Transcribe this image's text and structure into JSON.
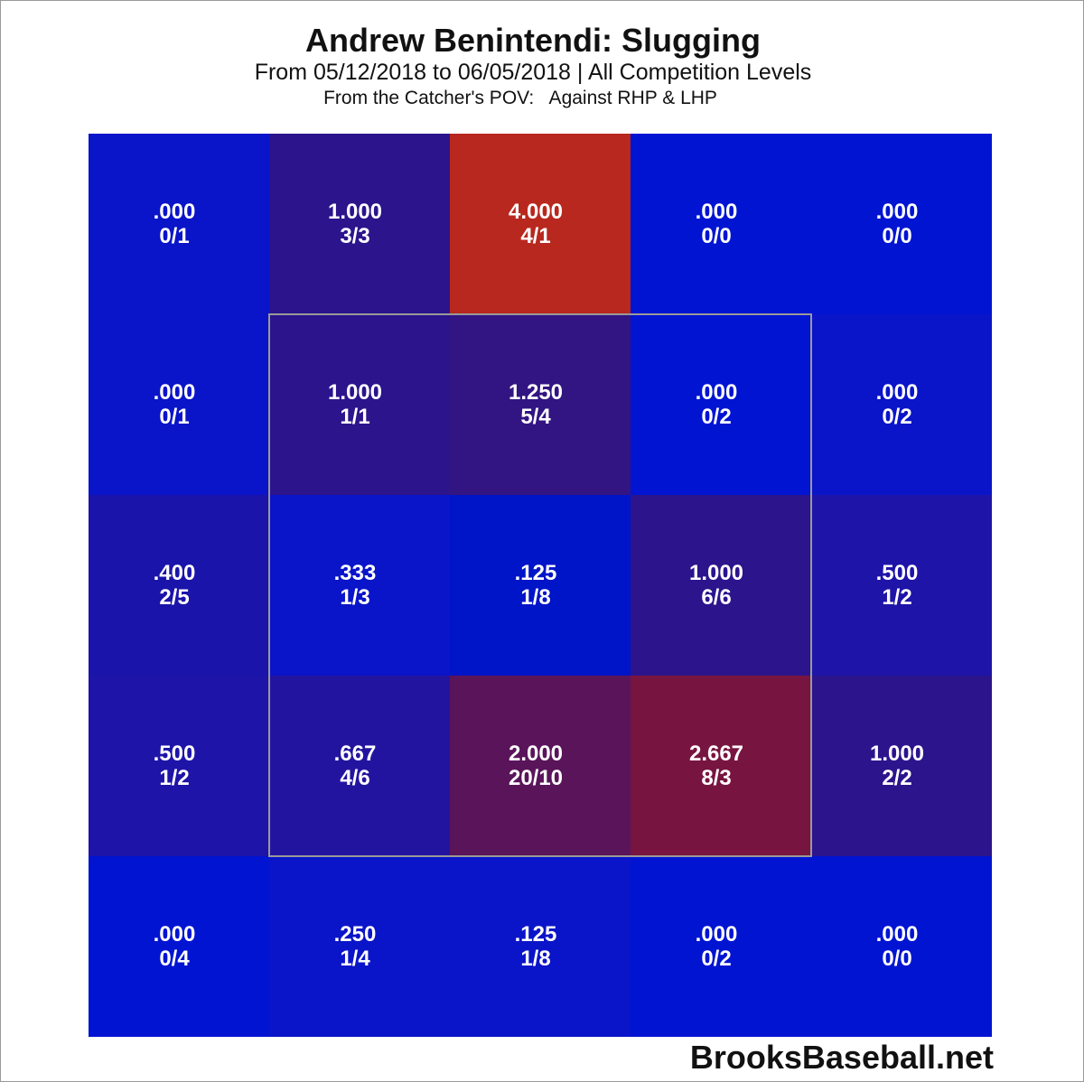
{
  "title": "Andrew Benintendi: Slugging",
  "subtitle": "From 05/12/2018 to 06/05/2018 | All Competition Levels",
  "subsubtitle": "From the Catcher's POV:   Against RHP & LHP",
  "footer": "BrooksBaseball.net",
  "chart_data": {
    "type": "heatmap",
    "title": "Andrew Benintendi: Slugging",
    "rows": 5,
    "cols": 5,
    "strike_zone": {
      "rows": [
        1,
        3
      ],
      "cols": [
        1,
        3
      ]
    },
    "cells": [
      [
        {
          "value": ".000",
          "ratio": "0/1",
          "color": "#0a14c8"
        },
        {
          "value": "1.000",
          "ratio": "3/3",
          "color": "#2b148c"
        },
        {
          "value": "4.000",
          "ratio": "4/1",
          "color": "#b8281e"
        },
        {
          "value": ".000",
          "ratio": "0/0",
          "color": "#0014d2"
        },
        {
          "value": ".000",
          "ratio": "0/0",
          "color": "#0014d2"
        }
      ],
      [
        {
          "value": ".000",
          "ratio": "0/1",
          "color": "#0a14c8"
        },
        {
          "value": "1.000",
          "ratio": "1/1",
          "color": "#2b148c"
        },
        {
          "value": "1.250",
          "ratio": "5/4",
          "color": "#321482"
        },
        {
          "value": ".000",
          "ratio": "0/2",
          "color": "#0014d2"
        },
        {
          "value": ".000",
          "ratio": "0/2",
          "color": "#0a14c8"
        }
      ],
      [
        {
          "value": ".400",
          "ratio": "2/5",
          "color": "#1a14aa"
        },
        {
          "value": ".333",
          "ratio": "1/3",
          "color": "#0a14c8"
        },
        {
          "value": ".125",
          "ratio": "1/8",
          "color": "#0014c8"
        },
        {
          "value": "1.000",
          "ratio": "6/6",
          "color": "#2b148c"
        },
        {
          "value": ".500",
          "ratio": "1/2",
          "color": "#1e14a8"
        }
      ],
      [
        {
          "value": ".500",
          "ratio": "1/2",
          "color": "#1e14a8"
        },
        {
          "value": ".667",
          "ratio": "4/6",
          "color": "#2314a0"
        },
        {
          "value": "2.000",
          "ratio": "20/10",
          "color": "#5a145a"
        },
        {
          "value": "2.667",
          "ratio": "8/3",
          "color": "#781440"
        },
        {
          "value": "1.000",
          "ratio": "2/2",
          "color": "#2b148c"
        }
      ],
      [
        {
          "value": ".000",
          "ratio": "0/4",
          "color": "#0014d2"
        },
        {
          "value": ".250",
          "ratio": "1/4",
          "color": "#0a14c8"
        },
        {
          "value": ".125",
          "ratio": "1/8",
          "color": "#0a14c8"
        },
        {
          "value": ".000",
          "ratio": "0/2",
          "color": "#0014d2"
        },
        {
          "value": ".000",
          "ratio": "0/0",
          "color": "#0014d2"
        }
      ]
    ]
  }
}
